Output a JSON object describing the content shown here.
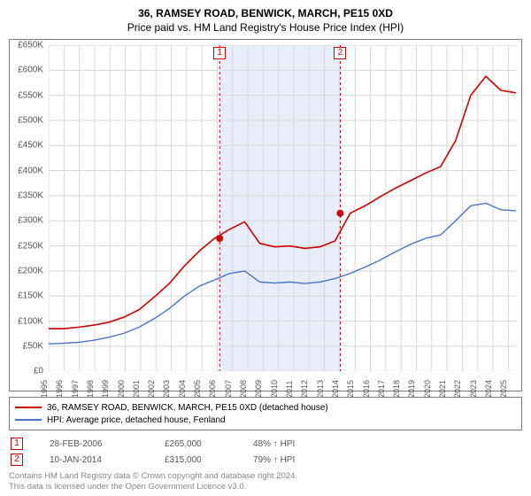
{
  "title": "36, RAMSEY ROAD, BENWICK, MARCH, PE15 0XD",
  "subtitle": "Price paid vs. HM Land Registry's House Price Index (HPI)",
  "chart": {
    "type": "line",
    "background_color": "#ffffff",
    "grid_color": "#d7d7d7",
    "axis_color": "#7a7a7a",
    "shade_color": "#e8eef9",
    "xlim": [
      1995,
      2025.5
    ],
    "ylim": [
      0,
      650000
    ],
    "ytick_step": 50000,
    "yticks": [
      "£0",
      "£50K",
      "£100K",
      "£150K",
      "£200K",
      "£250K",
      "£300K",
      "£350K",
      "£400K",
      "£450K",
      "£500K",
      "£550K",
      "£600K",
      "£650K"
    ],
    "xticks": [
      1995,
      1996,
      1997,
      1998,
      1999,
      2000,
      2001,
      2002,
      2003,
      2004,
      2005,
      2006,
      2007,
      2008,
      2009,
      2010,
      2011,
      2012,
      2013,
      2014,
      2015,
      2016,
      2017,
      2018,
      2019,
      2020,
      2021,
      2022,
      2023,
      2024,
      2025
    ],
    "series": [
      {
        "name": "property",
        "color": "#cc0000",
        "line_width": 1.6,
        "y": [
          85000,
          85000,
          88000,
          92000,
          98000,
          108000,
          123000,
          148000,
          175000,
          210000,
          240000,
          265000,
          283000,
          298000,
          255000,
          248000,
          250000,
          245000,
          248000,
          260000,
          315000,
          330000,
          348000,
          365000,
          380000,
          395000,
          408000,
          460000,
          550000,
          588000,
          560000,
          555000
        ]
      },
      {
        "name": "hpi",
        "color": "#4a74c9",
        "line_width": 1.4,
        "y": [
          55000,
          56000,
          58000,
          62000,
          68000,
          76000,
          88000,
          105000,
          125000,
          150000,
          170000,
          182000,
          195000,
          200000,
          178000,
          176000,
          178000,
          175000,
          178000,
          185000,
          195000,
          208000,
          222000,
          238000,
          253000,
          265000,
          272000,
          300000,
          330000,
          335000,
          322000,
          320000
        ]
      }
    ],
    "sale_points": [
      {
        "num": "1",
        "x": 2006.16,
        "y": 265000,
        "color": "#cc0000"
      },
      {
        "num": "2",
        "x": 2014.03,
        "y": 315000,
        "color": "#cc0000"
      }
    ]
  },
  "legend": [
    {
      "color": "#cc0000",
      "label": "36, RAMSEY ROAD, BENWICK, MARCH, PE15 0XD (detached house)"
    },
    {
      "color": "#4a74c9",
      "label": "HPI: Average price, detached house, Fenland"
    }
  ],
  "sales": [
    {
      "num": "1",
      "date": "28-FEB-2006",
      "price": "£265,000",
      "delta": "48% ↑ HPI"
    },
    {
      "num": "2",
      "date": "10-JAN-2014",
      "price": "£315,000",
      "delta": "79% ↑ HPI"
    }
  ],
  "footer_line1": "Contains HM Land Registry data © Crown copyright and database right 2024.",
  "footer_line2": "This data is licensed under the Open Government Licence v3.0."
}
